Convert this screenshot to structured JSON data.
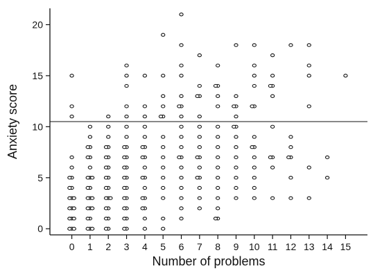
{
  "chart_data": {
    "type": "scatter",
    "title": "",
    "xlabel": "Number of problems",
    "ylabel": "Anxiety score",
    "x_ticks": [
      0,
      1,
      2,
      3,
      4,
      5,
      6,
      7,
      8,
      9,
      10,
      11,
      12,
      13,
      14,
      15
    ],
    "y_ticks": [
      0,
      5,
      10,
      15,
      20
    ],
    "xlim": [
      -1.2,
      16.2
    ],
    "ylim": [
      -0.6,
      21.6
    ],
    "reference_line_y": 10.5,
    "grid": false,
    "legend": "none",
    "points": [
      [
        0,
        0
      ],
      [
        0,
        0
      ],
      [
        0,
        0
      ],
      [
        0,
        1
      ],
      [
        0,
        1
      ],
      [
        0,
        1
      ],
      [
        0,
        2
      ],
      [
        0,
        2
      ],
      [
        0,
        2
      ],
      [
        0,
        3
      ],
      [
        0,
        3
      ],
      [
        0,
        3
      ],
      [
        0,
        4
      ],
      [
        0,
        4
      ],
      [
        0,
        5
      ],
      [
        0,
        5
      ],
      [
        0,
        6
      ],
      [
        0,
        7
      ],
      [
        0,
        11
      ],
      [
        0,
        12
      ],
      [
        0,
        15
      ],
      [
        1,
        0
      ],
      [
        1,
        0
      ],
      [
        1,
        0
      ],
      [
        1,
        1
      ],
      [
        1,
        1
      ],
      [
        1,
        2
      ],
      [
        1,
        2
      ],
      [
        1,
        2
      ],
      [
        1,
        3
      ],
      [
        1,
        3
      ],
      [
        1,
        3
      ],
      [
        1,
        4
      ],
      [
        1,
        4
      ],
      [
        1,
        5
      ],
      [
        1,
        5
      ],
      [
        1,
        5
      ],
      [
        1,
        6
      ],
      [
        1,
        7
      ],
      [
        1,
        7
      ],
      [
        1,
        8
      ],
      [
        1,
        8
      ],
      [
        1,
        9
      ],
      [
        1,
        10
      ],
      [
        2,
        0
      ],
      [
        2,
        0
      ],
      [
        2,
        1
      ],
      [
        2,
        1
      ],
      [
        2,
        2
      ],
      [
        2,
        2
      ],
      [
        2,
        3
      ],
      [
        2,
        3
      ],
      [
        2,
        3
      ],
      [
        2,
        4
      ],
      [
        2,
        4
      ],
      [
        2,
        5
      ],
      [
        2,
        5
      ],
      [
        2,
        6
      ],
      [
        2,
        6
      ],
      [
        2,
        7
      ],
      [
        2,
        7
      ],
      [
        2,
        8
      ],
      [
        2,
        8
      ],
      [
        2,
        9
      ],
      [
        2,
        10
      ],
      [
        2,
        11
      ],
      [
        3,
        0
      ],
      [
        3,
        0
      ],
      [
        3,
        1
      ],
      [
        3,
        1
      ],
      [
        3,
        2
      ],
      [
        3,
        2
      ],
      [
        3,
        3
      ],
      [
        3,
        3
      ],
      [
        3,
        4
      ],
      [
        3,
        4
      ],
      [
        3,
        5
      ],
      [
        3,
        5
      ],
      [
        3,
        6
      ],
      [
        3,
        6
      ],
      [
        3,
        7
      ],
      [
        3,
        7
      ],
      [
        3,
        8
      ],
      [
        3,
        8
      ],
      [
        3,
        9
      ],
      [
        3,
        10
      ],
      [
        3,
        11
      ],
      [
        3,
        12
      ],
      [
        3,
        14
      ],
      [
        3,
        15
      ],
      [
        3,
        16
      ],
      [
        4,
        0
      ],
      [
        4,
        1
      ],
      [
        4,
        2
      ],
      [
        4,
        2
      ],
      [
        4,
        3
      ],
      [
        4,
        3
      ],
      [
        4,
        4
      ],
      [
        4,
        5
      ],
      [
        4,
        5
      ],
      [
        4,
        6
      ],
      [
        4,
        7
      ],
      [
        4,
        7
      ],
      [
        4,
        8
      ],
      [
        4,
        8
      ],
      [
        4,
        9
      ],
      [
        4,
        10
      ],
      [
        4,
        11
      ],
      [
        4,
        12
      ],
      [
        4,
        15
      ],
      [
        5,
        0
      ],
      [
        5,
        1
      ],
      [
        5,
        3
      ],
      [
        5,
        4
      ],
      [
        5,
        5
      ],
      [
        5,
        6
      ],
      [
        5,
        7
      ],
      [
        5,
        8
      ],
      [
        5,
        9
      ],
      [
        5,
        11
      ],
      [
        5,
        11
      ],
      [
        5,
        12
      ],
      [
        5,
        13
      ],
      [
        5,
        15
      ],
      [
        5,
        19
      ],
      [
        6,
        1
      ],
      [
        6,
        2
      ],
      [
        6,
        3
      ],
      [
        6,
        4
      ],
      [
        6,
        5
      ],
      [
        6,
        6
      ],
      [
        6,
        7
      ],
      [
        6,
        7
      ],
      [
        6,
        8
      ],
      [
        6,
        9
      ],
      [
        6,
        10
      ],
      [
        6,
        11
      ],
      [
        6,
        12
      ],
      [
        6,
        12
      ],
      [
        6,
        13
      ],
      [
        6,
        15
      ],
      [
        6,
        16
      ],
      [
        6,
        18
      ],
      [
        6,
        21
      ],
      [
        7,
        2
      ],
      [
        7,
        3
      ],
      [
        7,
        4
      ],
      [
        7,
        5
      ],
      [
        7,
        5
      ],
      [
        7,
        6
      ],
      [
        7,
        7
      ],
      [
        7,
        7
      ],
      [
        7,
        8
      ],
      [
        7,
        9
      ],
      [
        7,
        10
      ],
      [
        7,
        11
      ],
      [
        7,
        13
      ],
      [
        7,
        13
      ],
      [
        7,
        14
      ],
      [
        7,
        17
      ],
      [
        8,
        1
      ],
      [
        8,
        1
      ],
      [
        8,
        2
      ],
      [
        8,
        3
      ],
      [
        8,
        4
      ],
      [
        8,
        5
      ],
      [
        8,
        6
      ],
      [
        8,
        7
      ],
      [
        8,
        8
      ],
      [
        8,
        9
      ],
      [
        8,
        10
      ],
      [
        8,
        12
      ],
      [
        8,
        13
      ],
      [
        8,
        14
      ],
      [
        8,
        14
      ],
      [
        8,
        16
      ],
      [
        9,
        3
      ],
      [
        9,
        4
      ],
      [
        9,
        5
      ],
      [
        9,
        6
      ],
      [
        9,
        7
      ],
      [
        9,
        8
      ],
      [
        9,
        9
      ],
      [
        9,
        10
      ],
      [
        9,
        10
      ],
      [
        9,
        11
      ],
      [
        9,
        12
      ],
      [
        9,
        12
      ],
      [
        9,
        13
      ],
      [
        9,
        18
      ],
      [
        10,
        3
      ],
      [
        10,
        4
      ],
      [
        10,
        5
      ],
      [
        10,
        6
      ],
      [
        10,
        7
      ],
      [
        10,
        8
      ],
      [
        10,
        8
      ],
      [
        10,
        9
      ],
      [
        10,
        12
      ],
      [
        10,
        12
      ],
      [
        10,
        14
      ],
      [
        10,
        15
      ],
      [
        10,
        16
      ],
      [
        10,
        18
      ],
      [
        11,
        3
      ],
      [
        11,
        6
      ],
      [
        11,
        7
      ],
      [
        11,
        7
      ],
      [
        11,
        10
      ],
      [
        11,
        13
      ],
      [
        11,
        14
      ],
      [
        11,
        14
      ],
      [
        11,
        15
      ],
      [
        11,
        17
      ],
      [
        12,
        3
      ],
      [
        12,
        5
      ],
      [
        12,
        7
      ],
      [
        12,
        7
      ],
      [
        12,
        8
      ],
      [
        12,
        9
      ],
      [
        12,
        18
      ],
      [
        13,
        3
      ],
      [
        13,
        6
      ],
      [
        13,
        12
      ],
      [
        13,
        15
      ],
      [
        13,
        16
      ],
      [
        13,
        18
      ],
      [
        14,
        5
      ],
      [
        14,
        7
      ],
      [
        15,
        15
      ]
    ]
  }
}
